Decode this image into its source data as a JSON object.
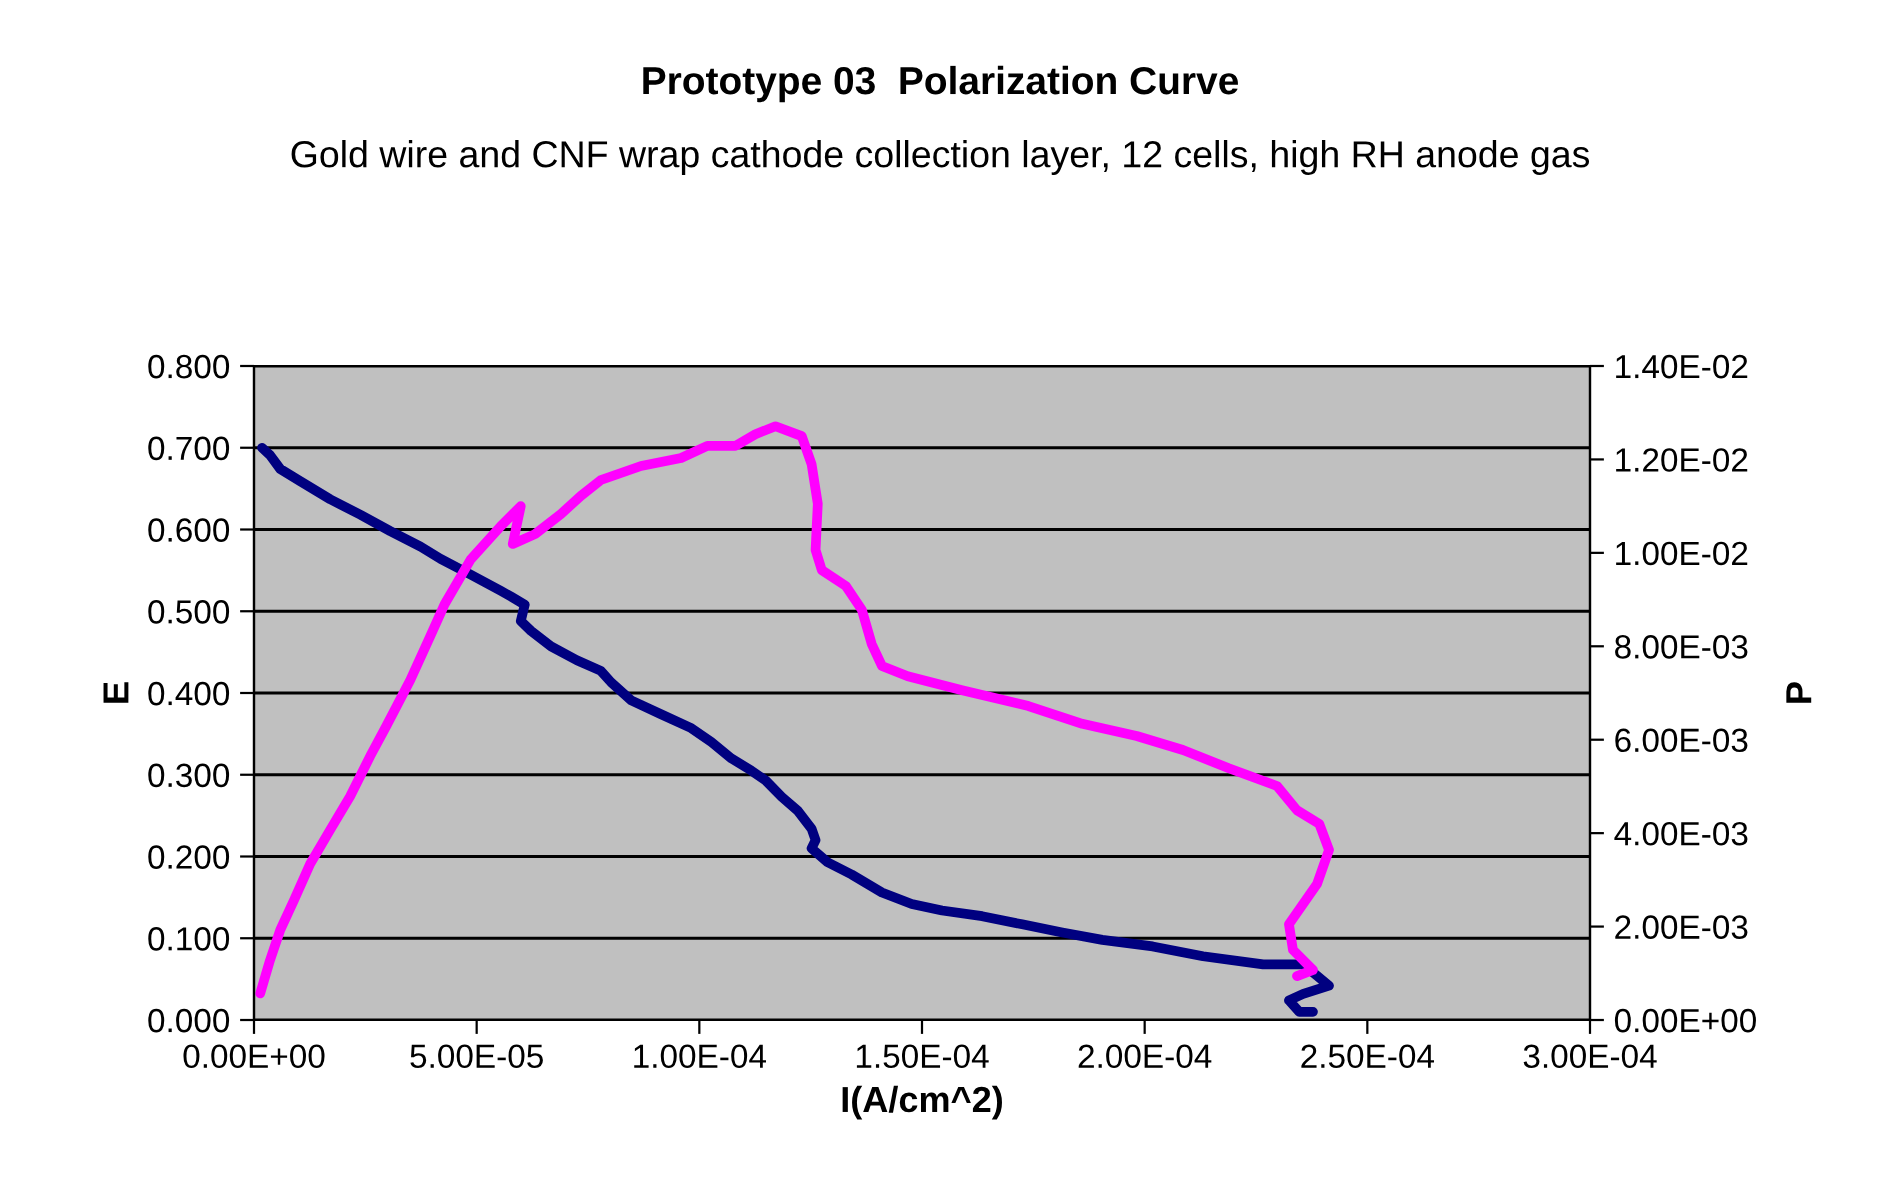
{
  "chart_data": {
    "type": "line",
    "title": "Prototype 03  Polarization Curve",
    "subtitle": "Gold wire and CNF wrap cathode collection layer, 12 cells, high RH anode gas",
    "xlabel": "I(A/cm^2)",
    "ylabel": "E",
    "y2label": "P",
    "xlim": [
      0,
      0.0003
    ],
    "xticks": [
      {
        "value": 0,
        "label": "0.00E+00"
      },
      {
        "value": 5e-05,
        "label": "5.00E-05"
      },
      {
        "value": 0.0001,
        "label": "1.00E-04"
      },
      {
        "value": 0.00015,
        "label": "1.50E-04"
      },
      {
        "value": 0.0002,
        "label": "2.00E-04"
      },
      {
        "value": 0.00025,
        "label": "2.50E-04"
      },
      {
        "value": 0.0003,
        "label": "3.00E-04"
      }
    ],
    "ylim": [
      0,
      0.8
    ],
    "yticks": [
      {
        "value": 0,
        "label": "0.000"
      },
      {
        "value": 0.1,
        "label": "0.100"
      },
      {
        "value": 0.2,
        "label": "0.200"
      },
      {
        "value": 0.3,
        "label": "0.300"
      },
      {
        "value": 0.4,
        "label": "0.400"
      },
      {
        "value": 0.5,
        "label": "0.500"
      },
      {
        "value": 0.6,
        "label": "0.600"
      },
      {
        "value": 0.7,
        "label": "0.700"
      },
      {
        "value": 0.8,
        "label": "0.800"
      }
    ],
    "y2lim": [
      0,
      0.014
    ],
    "y2ticks": [
      {
        "value": 0,
        "label": "0.00E+00"
      },
      {
        "value": 0.002,
        "label": "2.00E-03"
      },
      {
        "value": 0.004,
        "label": "4.00E-03"
      },
      {
        "value": 0.006,
        "label": "6.00E-03"
      },
      {
        "value": 0.008,
        "label": "8.00E-03"
      },
      {
        "value": 0.01,
        "label": "1.00E-02"
      },
      {
        "value": 0.012,
        "label": "1.20E-02"
      },
      {
        "value": 0.014,
        "label": "1.40E-02"
      }
    ],
    "grid": "y",
    "legend": false,
    "marker": "none",
    "line_style": "solid",
    "series": [
      {
        "color": "#000080",
        "x": [
          1.8e-06,
          3.6e-06,
          5.9e-06,
          1.04e-05,
          1.71e-05,
          2.39e-05,
          3.06e-05,
          3.74e-05,
          4.19e-05,
          4.86e-05,
          5.54e-05,
          5.77e-05,
          6.08e-05,
          5.99e-05,
          6.22e-05,
          6.67e-05,
          7.25e-05,
          7.79e-05,
          8.02e-05,
          8.47e-05,
          9.14e-05,
          9.82e-05,
          0.0001027,
          0.0001072,
          0.0001117,
          0.0001149,
          0.0001185,
          0.0001221,
          0.0001252,
          0.0001261,
          0.0001252,
          0.0001288,
          0.0001342,
          0.000141,
          0.0001477,
          0.0001545,
          0.0001635,
          0.0001725,
          0.0001815,
          0.0001905,
          0.0002018,
          0.0002131,
          0.0002266,
          0.0002356,
          0.0002387,
          0.0002414,
          0.0002356,
          0.0002324,
          0.0002347,
          0.0002378
        ],
        "values": [
          0.7,
          0.691,
          0.674,
          0.659,
          0.637,
          0.618,
          0.598,
          0.579,
          0.564,
          0.545,
          0.525,
          0.518,
          0.508,
          0.488,
          0.476,
          0.457,
          0.44,
          0.427,
          0.413,
          0.391,
          0.374,
          0.357,
          0.34,
          0.32,
          0.305,
          0.293,
          0.273,
          0.256,
          0.234,
          0.22,
          0.21,
          0.193,
          0.178,
          0.156,
          0.142,
          0.134,
          0.127,
          0.117,
          0.107,
          0.098,
          0.09,
          0.078,
          0.068,
          0.068,
          0.054,
          0.042,
          0.032,
          0.024,
          0.01,
          0.01
        ]
      },
      {
        "color": "#ff00ff",
        "axis": "y2",
        "x": [
          1.4e-06,
          3.6e-06,
          5.9e-06,
          9e-06,
          1.26e-05,
          1.71e-05,
          2.16e-05,
          2.61e-05,
          2.97e-05,
          3.51e-05,
          3.96e-05,
          4.28e-05,
          4.86e-05,
          5.54e-05,
          5.99e-05,
          5.81e-05,
          6.31e-05,
          6.89e-05,
          7.34e-05,
          7.79e-05,
          8.69e-05,
          9.59e-05,
          0.0001018,
          0.0001081,
          0.0001126,
          0.0001171,
          0.000123,
          0.0001252,
          0.0001266,
          0.0001261,
          0.0001275,
          0.0001329,
          0.0001365,
          0.0001387,
          0.000141,
          0.0001468,
          0.000159,
          0.0001739,
          0.000186,
          0.0001982,
          0.0002086,
          0.0002189,
          0.0002297,
          0.0002342,
          0.0002392,
          0.0002414,
          0.0002387,
          0.0002324,
          0.0002333,
          0.0002378,
          0.0002342
        ],
        "values": [
          0.00057,
          0.00128,
          0.00193,
          0.00257,
          0.00334,
          0.00407,
          0.00479,
          0.00565,
          0.00629,
          0.00728,
          0.00822,
          0.0089,
          0.00985,
          0.01057,
          0.011,
          0.01019,
          0.0104,
          0.01083,
          0.01122,
          0.01156,
          0.01186,
          0.01203,
          0.01229,
          0.01229,
          0.01254,
          0.01271,
          0.0125,
          0.0119,
          0.01105,
          0.01006,
          0.00963,
          0.00929,
          0.00878,
          0.00805,
          0.00758,
          0.00736,
          0.00706,
          0.00672,
          0.00634,
          0.00608,
          0.00578,
          0.00539,
          0.00501,
          0.00449,
          0.0042,
          0.00364,
          0.00291,
          0.00205,
          0.0015,
          0.00107,
          0.00094
        ]
      }
    ]
  }
}
